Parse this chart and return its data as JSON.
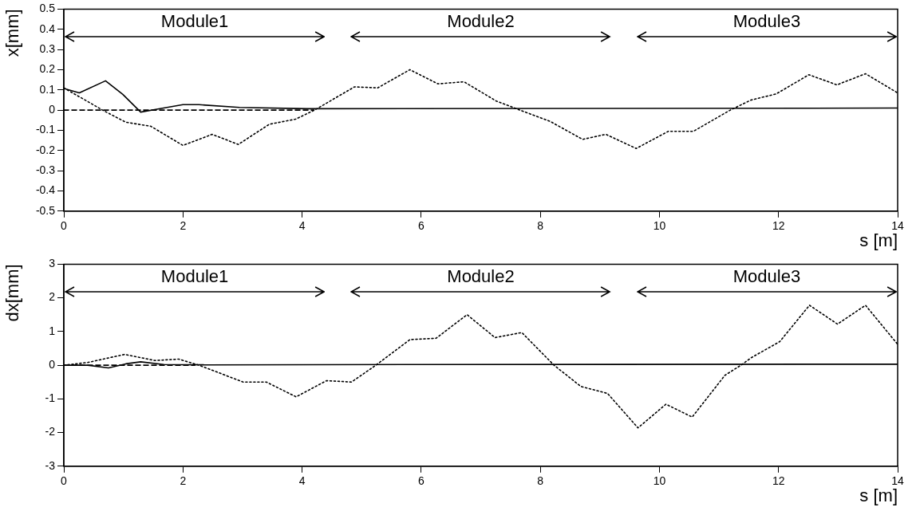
{
  "chart_data": [
    {
      "type": "line",
      "xlabel": "s [m]",
      "ylabel": "x[mm]",
      "xlim": [
        0,
        14
      ],
      "xticks": [
        0,
        2,
        4,
        6,
        8,
        10,
        12,
        14
      ],
      "ylim": [
        -0.5,
        0.5
      ],
      "yticks": [
        -0.5,
        -0.4,
        -0.3,
        -0.2,
        -0.1,
        0,
        0.1,
        0.2,
        0.3,
        0.4,
        0.5
      ],
      "grid": false,
      "legend": false,
      "marker": "none",
      "annotations": [
        "Module1",
        "Module2",
        "Module3"
      ],
      "series": [
        {
          "type": "line",
          "line_style": "dotted",
          "color": "#000000",
          "x": [
            0,
            0.65,
            1.04,
            1.46,
            2.0,
            2.49,
            2.93,
            3.45,
            3.89,
            4.21,
            4.88,
            5.27,
            5.81,
            6.28,
            6.72,
            7.26,
            7.66,
            8.16,
            8.71,
            9.1,
            9.61,
            10.15,
            10.57,
            11.19,
            11.54,
            11.96,
            12.51,
            12.98,
            13.46,
            14
          ],
          "values": [
            0.11,
            0,
            -0.06,
            -0.08,
            -0.175,
            -0.12,
            -0.17,
            -0.07,
            -0.045,
            0,
            0.115,
            0.11,
            0.2,
            0.13,
            0.14,
            0.045,
            0,
            -0.055,
            -0.145,
            -0.12,
            -0.19,
            -0.105,
            -0.105,
            0,
            0.05,
            0.08,
            0.175,
            0.125,
            0.18,
            0.085
          ]
        },
        {
          "type": "line",
          "line_style": "dashed",
          "color": "#000000",
          "x": [
            0,
            4.2
          ],
          "values": [
            0,
            0
          ]
        },
        {
          "type": "line",
          "line_style": "solid",
          "color": "#000000",
          "x": [
            0,
            0.26,
            0.7,
            0.99,
            1.29,
            1.58,
            2.0,
            2.27,
            2.95,
            4.08,
            14
          ],
          "values": [
            0.107,
            0.085,
            0.145,
            0.078,
            -0.01,
            0.005,
            0.027,
            0.027,
            0.013,
            0.007,
            0.01
          ]
        }
      ]
    },
    {
      "type": "line",
      "xlabel": "s [m]",
      "ylabel": "dx[mm]",
      "xlim": [
        0,
        14
      ],
      "xticks": [
        0,
        2,
        4,
        6,
        8,
        10,
        12,
        14
      ],
      "ylim": [
        -3,
        3
      ],
      "yticks": [
        -3,
        -2,
        -1,
        0,
        1,
        2,
        3
      ],
      "grid": false,
      "legend": false,
      "marker": "none",
      "annotations": [
        "Module1",
        "Module2",
        "Module3"
      ],
      "series": [
        {
          "type": "line",
          "line_style": "dotted",
          "color": "#000000",
          "x": [
            0,
            0.4,
            1.02,
            1.53,
            1.93,
            2.27,
            3.01,
            3.4,
            3.9,
            4.41,
            4.83,
            5.24,
            5.81,
            6.25,
            6.77,
            7.24,
            7.69,
            8.23,
            8.68,
            9.13,
            9.64,
            10.11,
            10.55,
            11.1,
            11.37,
            11.54,
            12.02,
            12.52,
            12.99,
            13.46,
            14
          ],
          "values": [
            0,
            0.08,
            0.32,
            0.14,
            0.18,
            0,
            -0.5,
            -0.5,
            -0.94,
            -0.46,
            -0.5,
            0,
            0.76,
            0.8,
            1.5,
            0.82,
            0.97,
            0,
            -0.63,
            -0.84,
            -1.86,
            -1.16,
            -1.54,
            -0.3,
            0,
            0.22,
            0.7,
            1.78,
            1.22,
            1.78,
            0.62
          ]
        },
        {
          "type": "line",
          "line_style": "dashed",
          "color": "#000000",
          "x": [
            0,
            2.2
          ],
          "values": [
            0,
            0
          ]
        },
        {
          "type": "line",
          "line_style": "solid",
          "color": "#000000",
          "x": [
            0,
            0.4,
            0.75,
            1.04,
            1.29,
            1.68,
            2.37,
            6,
            14
          ],
          "values": [
            0,
            0,
            -0.08,
            0.04,
            0.1,
            0.02,
            0.01,
            0.02,
            0.03
          ]
        }
      ]
    }
  ]
}
